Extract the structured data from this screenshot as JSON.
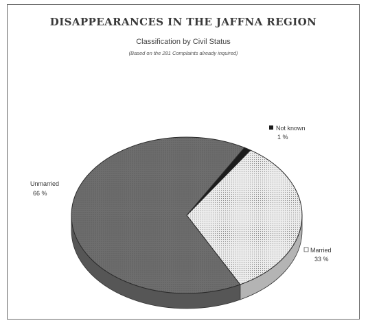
{
  "chart_data": {
    "type": "pie",
    "title": "DISAPPEARANCES IN THE JAFFNA REGION",
    "subtitle": "Classification by Civil Status",
    "note": "(Based on the 281 Complaints already inquired)",
    "slices": [
      {
        "label": "Not known",
        "value": 1,
        "display": "1 %",
        "color": "#1c1c1c"
      },
      {
        "label": "Married",
        "value": 33,
        "display": "33 %",
        "color": "#e6e6e6"
      },
      {
        "label": "Unmarried",
        "value": 66,
        "display": "66 %",
        "color": "#6f6f6f"
      }
    ],
    "legend": "none"
  }
}
